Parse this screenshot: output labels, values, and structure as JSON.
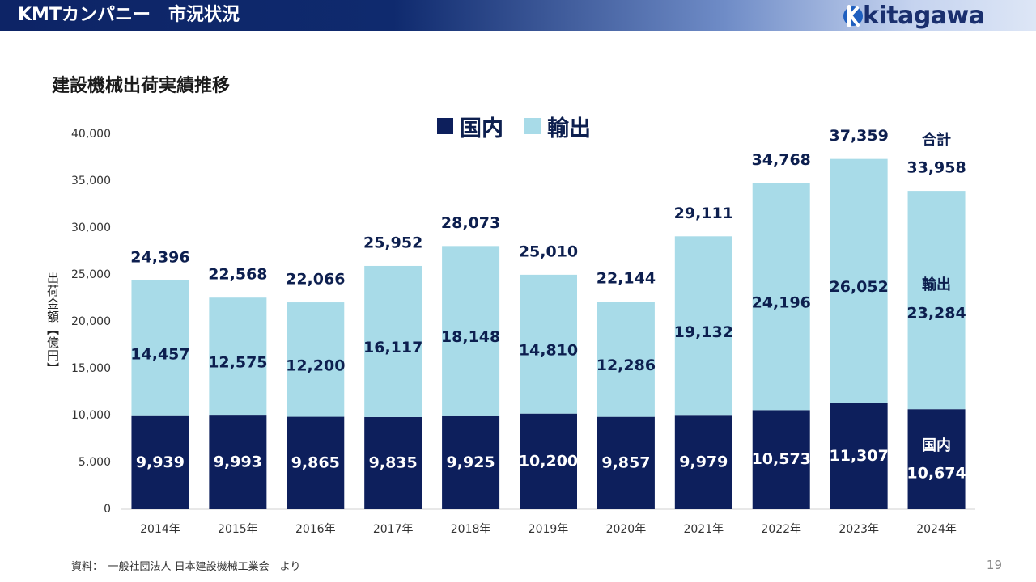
{
  "header": {
    "title": "KMTカンパニー　市況状況",
    "logo_text": "kitagawa"
  },
  "section_title": "建設機械出荷実績推移",
  "y_axis_label": "出荷金額【億円】",
  "footer": {
    "source": "資料：　一般社団法人 日本建設機械工業会　より",
    "page_number": "19"
  },
  "colors": {
    "header_dark": "#0d2466",
    "domestic": "#0d1f5c",
    "export": "#a8dbe8",
    "label_dark": "#0d1f4f"
  },
  "chart_data": {
    "type": "bar",
    "stacked": true,
    "categories": [
      "2014年",
      "2015年",
      "2016年",
      "2017年",
      "2018年",
      "2019年",
      "2020年",
      "2021年",
      "2022年",
      "2023年",
      "2024年"
    ],
    "series": [
      {
        "name": "国内",
        "color": "#0d1f5c",
        "values": [
          9939,
          9993,
          9865,
          9835,
          9925,
          10200,
          9857,
          9979,
          10573,
          11307,
          10674
        ]
      },
      {
        "name": "輸出",
        "color": "#a8dbe8",
        "values": [
          14457,
          12575,
          12200,
          16117,
          18148,
          14810,
          12286,
          19132,
          24196,
          26052,
          23284
        ]
      }
    ],
    "totals": [
      24396,
      22568,
      22066,
      25952,
      28073,
      25010,
      22144,
      29111,
      34768,
      37359,
      33958
    ],
    "ylim": [
      0,
      40000
    ],
    "yticks": [
      0,
      5000,
      10000,
      15000,
      20000,
      25000,
      30000,
      35000,
      40000
    ],
    "ytick_labels": [
      "0",
      "5,000",
      "10,000",
      "15,000",
      "20,000",
      "25,000",
      "30,000",
      "35,000",
      "40,000"
    ],
    "domestic_labels": [
      "9,939",
      "9,993",
      "9,865",
      "9,835",
      "9,925",
      "10,200",
      "9,857",
      "9,979",
      "10,573",
      "11,307",
      "10,674"
    ],
    "export_labels": [
      "14,457",
      "12,575",
      "12,200",
      "16,117",
      "18,148",
      "14,810",
      "12,286",
      "19,132",
      "24,196",
      "26,052",
      "23,284"
    ],
    "total_labels": [
      "24,396",
      "22,568",
      "22,066",
      "25,952",
      "28,073",
      "25,010",
      "22,144",
      "29,111",
      "34,768",
      "37,359",
      "33,958"
    ],
    "last_bar_annotations": {
      "total_caption": "合計",
      "export_caption": "輸出",
      "domestic_caption": "国内"
    },
    "legend": [
      "国内",
      "輸出"
    ],
    "legend_position": "top-center",
    "grid": false,
    "ylabel": "出荷金額【億円】",
    "xlabel": ""
  }
}
